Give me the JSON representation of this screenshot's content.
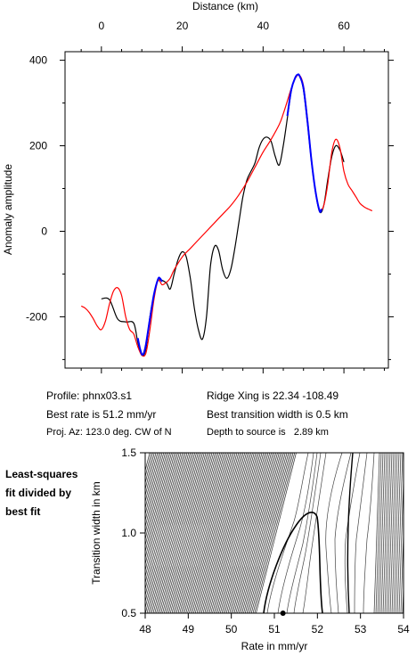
{
  "chart_data": [
    {
      "type": "line",
      "title": "",
      "xlabel": "Distance (km)",
      "ylabel": "Anomaly amplitude",
      "x_ticks": [
        0,
        20,
        40,
        60
      ],
      "y_ticks": [
        -200,
        0,
        200,
        400
      ],
      "xlim": [
        -9,
        71
      ],
      "ylim": [
        -320,
        420
      ],
      "grid": false,
      "series": [
        {
          "color": "#000000",
          "points": [
            [
              0,
              -158
            ],
            [
              2,
              -160
            ],
            [
              4,
              -205
            ],
            [
              6,
              -212
            ],
            [
              8,
              -215
            ],
            [
              9,
              -260
            ],
            [
              10,
              -290
            ],
            [
              11,
              -275
            ],
            [
              12,
              -200
            ],
            [
              13,
              -150
            ],
            [
              14,
              -115
            ],
            [
              16,
              -120
            ],
            [
              17,
              -135
            ],
            [
              18,
              -100
            ],
            [
              19,
              -65
            ],
            [
              20,
              -48
            ],
            [
              21,
              -60
            ],
            [
              22,
              -110
            ],
            [
              23,
              -180
            ],
            [
              24,
              -230
            ],
            [
              25,
              -252
            ],
            [
              26,
              -200
            ],
            [
              27,
              -80
            ],
            [
              28,
              -35
            ],
            [
              29,
              -45
            ],
            [
              30,
              -90
            ],
            [
              31,
              -110
            ],
            [
              32,
              -90
            ],
            [
              33,
              -40
            ],
            [
              34,
              20
            ],
            [
              35,
              80
            ],
            [
              36,
              120
            ],
            [
              37,
              140
            ],
            [
              38,
              160
            ],
            [
              39,
              195
            ],
            [
              40,
              215
            ],
            [
              41,
              220
            ],
            [
              42,
              210
            ],
            [
              43,
              175
            ],
            [
              44,
              155
            ],
            [
              45,
              200
            ],
            [
              46,
              265
            ],
            [
              47,
              330
            ],
            [
              48,
              360
            ],
            [
              49,
              365
            ],
            [
              50,
              330
            ],
            [
              51,
              250
            ],
            [
              52,
              160
            ],
            [
              53,
              90
            ],
            [
              54,
              45
            ],
            [
              55,
              60
            ],
            [
              56,
              120
            ],
            [
              57,
              175
            ],
            [
              58,
              200
            ],
            [
              59,
              190
            ],
            [
              60,
              162
            ]
          ]
        },
        {
          "color": "#ff0000",
          "points": [
            [
              -5,
              -175
            ],
            [
              -4,
              -180
            ],
            [
              -3,
              -190
            ],
            [
              -2,
              -205
            ],
            [
              -1,
              -222
            ],
            [
              0,
              -230
            ],
            [
              1,
              -210
            ],
            [
              2,
              -170
            ],
            [
              3,
              -140
            ],
            [
              4,
              -132
            ],
            [
              5,
              -150
            ],
            [
              6,
              -200
            ],
            [
              7,
              -230
            ],
            [
              8,
              -240
            ],
            [
              9,
              -270
            ],
            [
              10,
              -290
            ],
            [
              11,
              -285
            ],
            [
              12,
              -230
            ],
            [
              13,
              -160
            ],
            [
              14,
              -115
            ],
            [
              15,
              -125
            ],
            [
              16,
              -120
            ],
            [
              17,
              -110
            ],
            [
              18,
              -90
            ],
            [
              20,
              -60
            ],
            [
              22,
              -40
            ],
            [
              24,
              -20
            ],
            [
              26,
              0
            ],
            [
              28,
              20
            ],
            [
              30,
              40
            ],
            [
              32,
              60
            ],
            [
              34,
              85
            ],
            [
              36,
              115
            ],
            [
              38,
              150
            ],
            [
              40,
              185
            ],
            [
              42,
              215
            ],
            [
              44,
              250
            ],
            [
              45,
              275
            ],
            [
              46,
              305
            ],
            [
              47,
              335
            ],
            [
              48,
              358
            ],
            [
              49,
              365
            ],
            [
              50,
              340
            ],
            [
              51,
              260
            ],
            [
              52,
              165
            ],
            [
              53,
              90
            ],
            [
              54,
              50
            ],
            [
              55,
              60
            ],
            [
              56,
              110
            ],
            [
              57,
              185
            ],
            [
              58,
              215
            ],
            [
              59,
              195
            ],
            [
              60,
              140
            ],
            [
              61,
              110
            ],
            [
              62,
              95
            ],
            [
              63,
              80
            ],
            [
              64,
              65
            ],
            [
              65,
              57
            ],
            [
              66,
              52
            ],
            [
              67,
              48
            ]
          ]
        },
        {
          "color": "#0000ff",
          "points": [
            [
              9,
              -250
            ],
            [
              9.5,
              -272
            ],
            [
              10,
              -288
            ],
            [
              10.5,
              -285
            ],
            [
              11,
              -265
            ],
            [
              12,
              -205
            ],
            [
              13,
              -148
            ],
            [
              14,
              -112
            ],
            [
              14.5,
              -110
            ],
            [
              15,
              -118
            ]
          ]
        },
        {
          "color": "#0000ff",
          "points": [
            [
              46,
              270
            ],
            [
              47,
              332
            ],
            [
              48,
              360
            ],
            [
              48.5,
              366
            ],
            [
              49,
              364
            ],
            [
              50,
              335
            ],
            [
              51,
              255
            ],
            [
              52,
              163
            ],
            [
              53,
              92
            ],
            [
              54,
              47
            ],
            [
              54.5,
              52
            ]
          ]
        }
      ]
    },
    {
      "type": "contour",
      "xlabel": "Rate in mm/yr",
      "ylabel": "Transition width in km",
      "x_ticks": [
        "48",
        "49",
        "50",
        "51",
        "52",
        "53",
        "54"
      ],
      "y_ticks": [
        "0.5",
        "1.0",
        "1.5"
      ],
      "xlim": [
        48,
        54
      ],
      "ylim": [
        0.5,
        1.5
      ],
      "best_fit_point": {
        "rate": 51.2,
        "width": 0.5
      }
    }
  ],
  "info": {
    "profile": "Profile: phnx03.s1",
    "ridge": "Ridge Xing is 22.34 -108.49",
    "rate": "Best rate is 51.2 mm/yr",
    "width": "Best transition width is 0.5 km",
    "az": "Proj. Az: 123.0 deg. CW of N",
    "depth": "Depth to source is   2.89 km"
  },
  "side_label": [
    "Least-squares",
    "fit divided by",
    "best fit"
  ]
}
